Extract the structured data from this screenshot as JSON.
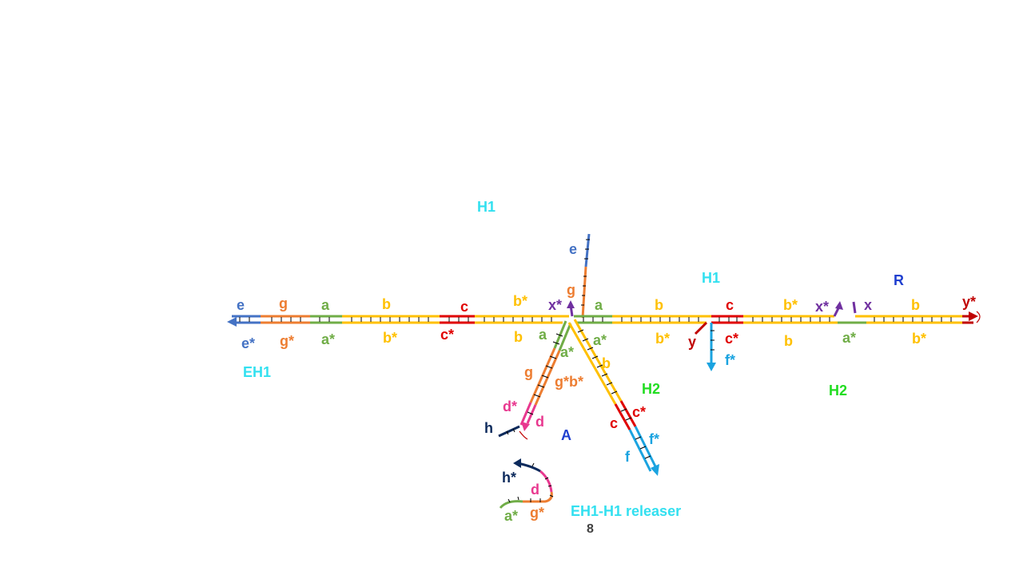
{
  "colors": {
    "e": "#4472c4",
    "g": "#ed7d31",
    "a": "#70ad47",
    "b": "#ffc000",
    "c": "#e00000",
    "d": "#e8388f",
    "f": "#1aa3e0",
    "h": "#0c2a5c",
    "x": "#7030a0",
    "y": "#c00000",
    "cyan_label": "#33e0f0",
    "green_label": "#22dd22",
    "blue_label": "#1f3fcf",
    "tick": "#000000"
  },
  "complex_labels": {
    "EH1": "EH1",
    "H1_top": "H1",
    "H1_right": "H1",
    "R": "R",
    "H2_mid": "H2",
    "H2_right": "H2",
    "A": "A",
    "releaser": "EH1-H1 releaser"
  },
  "domains": {
    "e": "e",
    "e_star": "e*",
    "g": "g",
    "g_star": "g*",
    "a": "a",
    "a_star": "a*",
    "b": "b",
    "b_star": "b*",
    "c": "c",
    "c_star": "c*",
    "d": "d",
    "d_star": "d*",
    "f": "f",
    "f_star": "f*",
    "h": "h",
    "h_star": "h*",
    "x": "x",
    "x_star": "x*",
    "y": "y",
    "y_star": "y*",
    "gb_star": "g*b*"
  },
  "page_number": "8"
}
